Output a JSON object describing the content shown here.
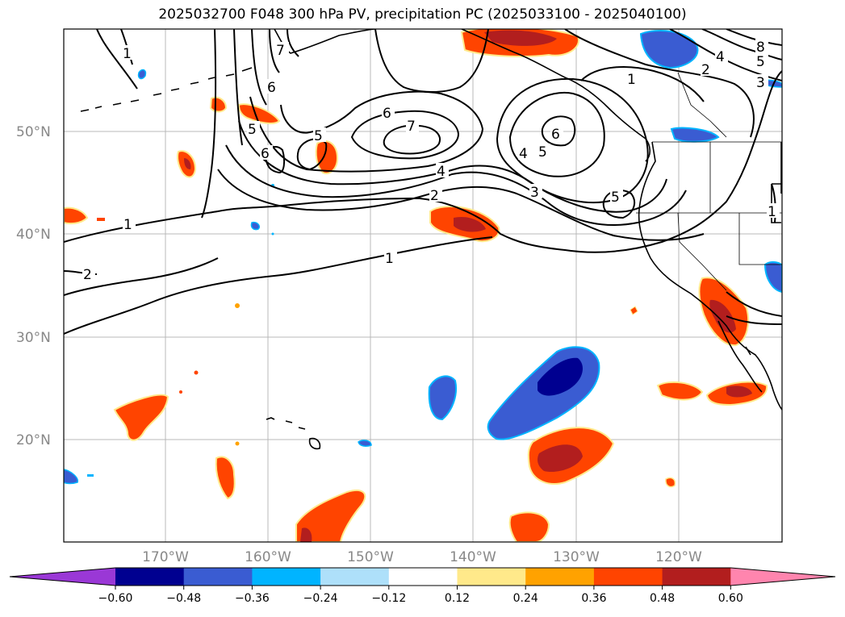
{
  "title": "2025032700 F048 300 hPa PV, precipitation PC (2025033100 - 2025040100)",
  "latitude_labels": [
    "50°N",
    "40°N",
    "30°N",
    "20°N"
  ],
  "longitude_labels": [
    "170°W",
    "160°W",
    "150°W",
    "140°W",
    "130°W",
    "120°W"
  ],
  "contour_labels": [
    "1",
    "7",
    "6",
    "5",
    "6",
    "5",
    "6",
    "7",
    "4",
    "2",
    "1",
    "3",
    "6",
    "5",
    "5",
    "4",
    "1",
    "2",
    "1",
    "8",
    "5",
    "2",
    "3",
    "4",
    "1"
  ],
  "colorbar": {
    "ticks": [
      "−0.60",
      "−0.48",
      "−0.36",
      "−0.24",
      "−0.12",
      "0.12",
      "0.24",
      "0.36",
      "0.48",
      "0.60"
    ],
    "colors": [
      "#9a38d6",
      "#000090",
      "#3a5cd2",
      "#00b4ff",
      "#aee0fa",
      "#ffffff",
      "#ffe98a",
      "#ffa200",
      "#ff4400",
      "#b21e1e",
      "#ff85ae"
    ]
  },
  "colors": {
    "positive_strong": "#b21e1e",
    "positive_mid": "#ff4400",
    "positive_weak": "#ffa200",
    "negative_strong": "#000090",
    "negative_mid": "#3a5cd2",
    "negative_weak": "#00b4ff"
  }
}
